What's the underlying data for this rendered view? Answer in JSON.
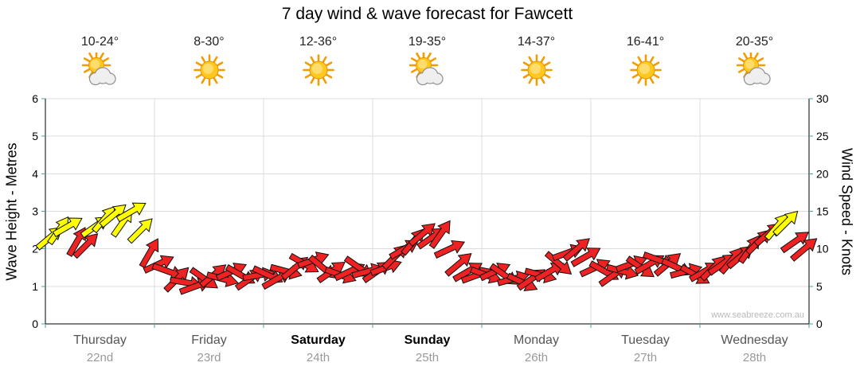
{
  "watermark": "www.seabreeze.com.au",
  "days": [
    {
      "name": "Thursday",
      "date": "22nd",
      "temp": "10-24°",
      "icon": "sun-cloud",
      "bold": false
    },
    {
      "name": "Friday",
      "date": "23rd",
      "temp": "8-30°",
      "icon": "sun",
      "bold": false
    },
    {
      "name": "Saturday",
      "date": "24th",
      "temp": "12-36°",
      "icon": "sun",
      "bold": true
    },
    {
      "name": "Sunday",
      "date": "25th",
      "temp": "19-35°",
      "icon": "sun-cloud",
      "bold": true
    },
    {
      "name": "Monday",
      "date": "26th",
      "temp": "14-37°",
      "icon": "sun",
      "bold": false
    },
    {
      "name": "Tuesday",
      "date": "27th",
      "temp": "16-41°",
      "icon": "sun",
      "bold": false
    },
    {
      "name": "Wednesday",
      "date": "28th",
      "temp": "20-35°",
      "icon": "sun-cloud",
      "bold": false
    }
  ],
  "chart_data": {
    "type": "wind-arrow-timeseries",
    "title": "7 day wind & wave forecast for Fawcett",
    "ylabel_left": "Wave Height - Metres",
    "ylabel_right": "Wind Speed - Knots",
    "ylim_left": [
      0,
      6
    ],
    "ylim_right": [
      0,
      30
    ],
    "yticks_left": [
      0,
      1,
      2,
      3,
      4,
      5,
      6
    ],
    "yticks_right": [
      0,
      5,
      10,
      15,
      20,
      25,
      30
    ],
    "categories": [
      "Thursday 22nd",
      "Friday 23rd",
      "Saturday 24th",
      "Sunday 25th",
      "Monday 26th",
      "Tuesday 27th",
      "Wednesday 28th"
    ],
    "grid": true,
    "legend": "none",
    "colors": {
      "light_wind": "#ee2222",
      "moderate_wind": "#ffff00",
      "outline": "#101010",
      "tick": "#46a3a3",
      "gridline": "#dcdcdc"
    },
    "points_per_day": 12,
    "wind_knots": [
      11.5,
      12.5,
      13,
      11,
      10.5,
      13,
      14,
      14.5,
      13.5,
      15,
      12.5,
      9.5,
      8,
      7,
      6,
      5.5,
      5,
      6,
      6.5,
      6,
      7,
      6.5,
      6,
      6.5,
      6.5,
      6,
      7,
      7.5,
      8,
      8.5,
      7.5,
      7,
      6.5,
      7,
      7.5,
      7,
      7,
      7.5,
      9,
      10,
      11,
      12,
      11.5,
      12,
      10,
      8,
      7,
      6.5,
      6.5,
      7,
      6.5,
      6,
      5.5,
      6,
      6.5,
      7,
      8,
      9.5,
      10,
      9,
      7.5,
      7,
      6.5,
      7,
      8,
      7.5,
      8,
      8.5,
      8,
      7.5,
      7,
      6.5,
      7,
      7.5,
      8,
      8.5,
      9,
      10,
      11,
      12,
      13,
      13.5,
      11,
      10
    ],
    "arrow_colors": [
      "Y",
      "Y",
      "Y",
      "R",
      "R",
      "Y",
      "Y",
      "Y",
      "Y",
      "Y",
      "Y",
      "R",
      "R",
      "R",
      "R",
      "R",
      "R",
      "R",
      "R",
      "R",
      "R",
      "R",
      "R",
      "R",
      "R",
      "R",
      "R",
      "R",
      "R",
      "R",
      "R",
      "R",
      "R",
      "R",
      "R",
      "R",
      "R",
      "R",
      "R",
      "R",
      "R",
      "R",
      "R",
      "R",
      "R",
      "R",
      "R",
      "R",
      "R",
      "R",
      "R",
      "R",
      "R",
      "R",
      "R",
      "R",
      "R",
      "R",
      "R",
      "R",
      "R",
      "R",
      "R",
      "R",
      "R",
      "R",
      "R",
      "R",
      "R",
      "R",
      "R",
      "R",
      "R",
      "R",
      "R",
      "R",
      "R",
      "R",
      "R",
      "R",
      "Y",
      "Y",
      "R",
      "R"
    ],
    "arrow_dirs_deg": [
      -40,
      -55,
      -30,
      -60,
      -45,
      -35,
      -50,
      -40,
      -55,
      -30,
      -45,
      -60,
      -25,
      20,
      -45,
      10,
      -20,
      35,
      -40,
      15,
      -25,
      30,
      -35,
      -10,
      25,
      -30,
      15,
      -40,
      30,
      -20,
      40,
      -35,
      20,
      -25,
      35,
      -15,
      -35,
      -20,
      -45,
      -30,
      -50,
      -40,
      -35,
      -55,
      -25,
      -40,
      -30,
      -20,
      20,
      -25,
      35,
      -15,
      25,
      -35,
      15,
      -30,
      40,
      -20,
      -40,
      -30,
      -25,
      30,
      -35,
      15,
      -20,
      35,
      -30,
      20,
      -40,
      25,
      -15,
      30,
      -30,
      -45,
      -35,
      -50,
      -40,
      -55,
      -45,
      -40,
      -50,
      -45,
      -35,
      -40
    ]
  }
}
